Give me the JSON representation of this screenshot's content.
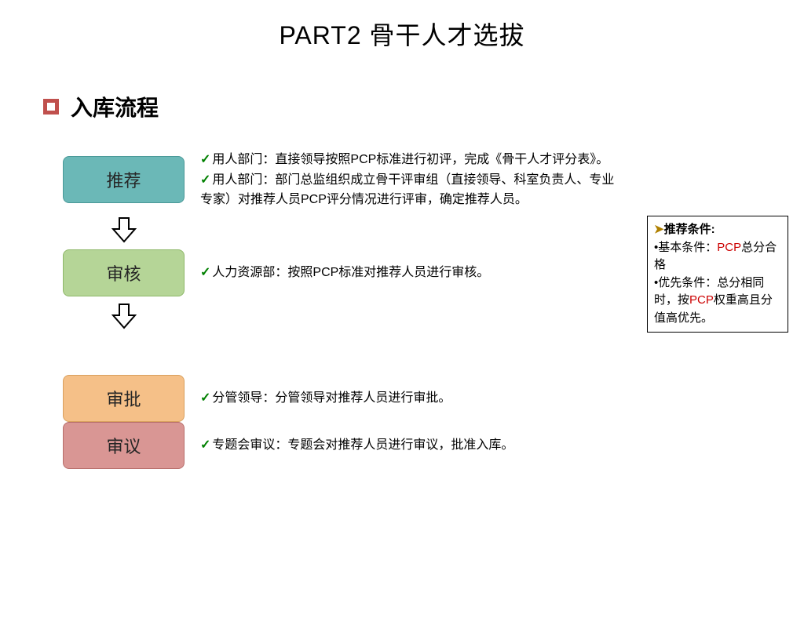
{
  "page_title": "PART2 骨干人才选拔",
  "section_title": "入库流程",
  "steps": [
    {
      "label": "推荐",
      "box_color": "teal",
      "descriptions": [
        "用人部门：直接领导按照PCP标准进行初评，完成《骨干人才评分表》。",
        "用人部门：部门总监组织成立骨干评审组（直接领导、科室负责人、专业专家）对推荐人员PCP评分情况进行评审，确定推荐人员。"
      ]
    },
    {
      "label": "审核",
      "box_color": "green",
      "descriptions": [
        "人力资源部：按照PCP标准对推荐人员进行审核。"
      ]
    },
    {
      "label": "审批",
      "box_color": "orange",
      "descriptions": [
        "分管领导：分管领导对推荐人员进行审批。"
      ]
    },
    {
      "label": "审议",
      "box_color": "red",
      "descriptions": [
        "专题会审议：专题会对推荐人员进行审议，批准入库。"
      ]
    }
  ],
  "arrows_after": [
    true,
    true,
    false,
    false
  ],
  "spacing": [
    0,
    0,
    50,
    0
  ],
  "side_note": {
    "title": "推荐条件:",
    "line1_prefix": "基本条件：",
    "line1_pcp": "PCP",
    "line1_suffix": "总分合格",
    "line2_prefix": "优先条件：总分相同时，按",
    "line2_pcp": "PCP",
    "line2_suffix": "权重高且分值高优先。"
  },
  "colors": {
    "bullet_border": "#c0504d",
    "check_mark": "#008000",
    "pcp_highlight": "#cc0000",
    "arrow_marker": "#b08000"
  }
}
